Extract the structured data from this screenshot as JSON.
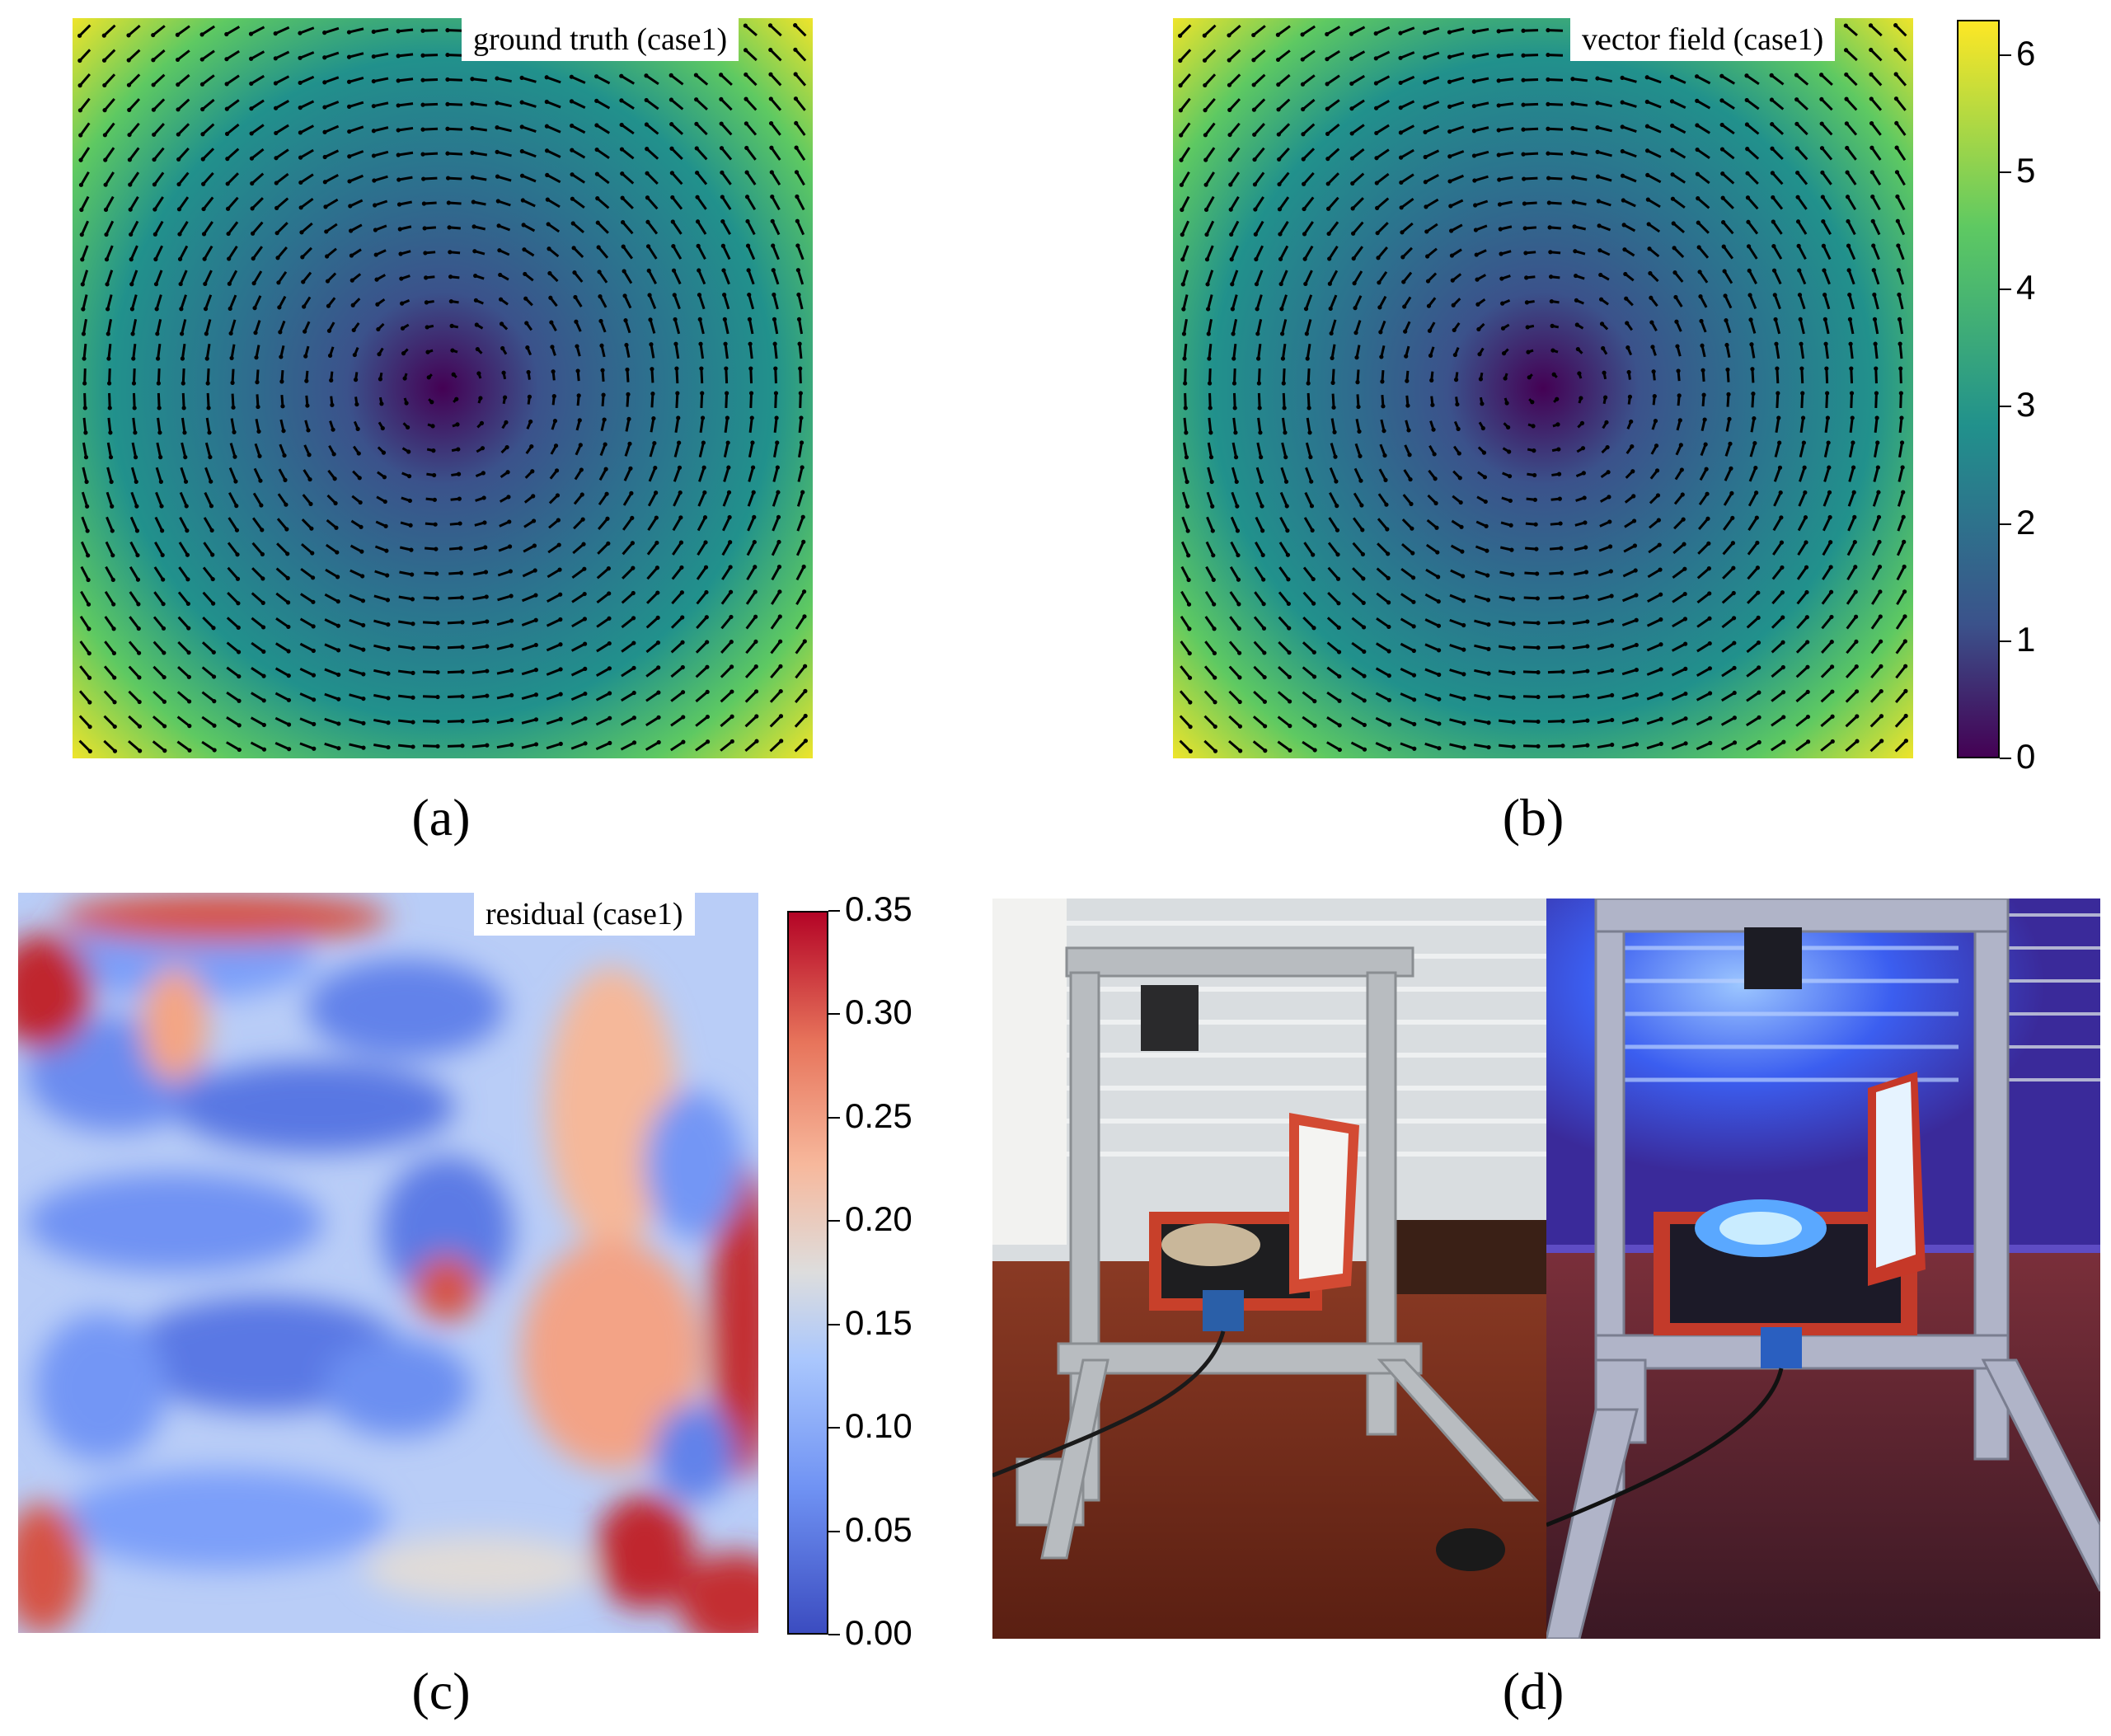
{
  "panels": {
    "a": {
      "caption": "(a)",
      "label": "ground truth (case1)"
    },
    "b": {
      "caption": "(b)",
      "label": "vector field (case1)"
    },
    "c": {
      "caption": "(c)",
      "label": "residual (case1)"
    },
    "d": {
      "caption": "(d)"
    }
  },
  "colorbar_b": {
    "colormap": "viridis",
    "range": [
      0,
      6.3
    ],
    "ticks": [
      "0",
      "1",
      "2",
      "3",
      "4",
      "5",
      "6"
    ]
  },
  "colorbar_c": {
    "colormap": "coolwarm",
    "range": [
      0,
      0.35
    ],
    "ticks": [
      "0.00",
      "0.05",
      "0.10",
      "0.15",
      "0.20",
      "0.25",
      "0.30",
      "0.35"
    ]
  },
  "colors": {
    "viridis_low": "#440154",
    "viridis_mid": "#21918c",
    "viridis_high": "#fde725",
    "coolwarm_low": "#3b4cc0",
    "coolwarm_mid": "#dddddd",
    "coolwarm_high": "#b40426"
  }
}
